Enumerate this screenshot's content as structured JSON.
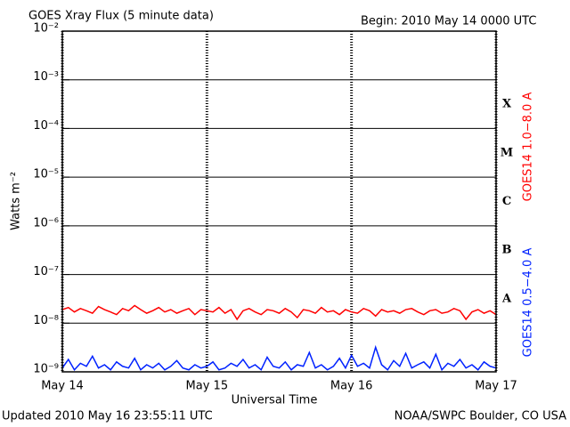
{
  "chart_data": {
    "type": "line",
    "title": "GOES Xray Flux (5 minute data)",
    "subtitle": "Begin:  2010 May 14 0000 UTC",
    "y_label": "Watts m⁻²",
    "x_label": "Universal Time",
    "footer_left": "Updated 2010 May 16 23:55:11 UTC",
    "footer_right": "NOAA/SWPC Boulder, CO USA",
    "annotations": [
      "X",
      "M",
      "C",
      "B",
      "A"
    ],
    "log_y": true,
    "grid": true,
    "xlim": [
      0,
      72
    ],
    "xticks": [
      {
        "value": 0,
        "label": "May 14"
      },
      {
        "value": 24,
        "label": "May 15"
      },
      {
        "value": 48,
        "label": "May 16"
      },
      {
        "value": 72,
        "label": "May 17"
      }
    ],
    "ylim": [
      1e-09,
      0.01
    ],
    "yticks": [
      {
        "value": 1e-09,
        "label": "10⁻⁹"
      },
      {
        "value": 1e-08,
        "label": "10⁻⁸"
      },
      {
        "value": 1e-07,
        "label": "10⁻⁷"
      },
      {
        "value": 1e-06,
        "label": "10⁻⁶"
      },
      {
        "value": 1e-05,
        "label": "10⁻⁵"
      },
      {
        "value": 0.0001,
        "label": "10⁻⁴"
      },
      {
        "value": 0.001,
        "label": "10⁻³"
      },
      {
        "value": 0.01,
        "label": "10⁻²"
      }
    ],
    "x": [
      0,
      1,
      2,
      3,
      4,
      5,
      6,
      7,
      8,
      9,
      10,
      11,
      12,
      13,
      14,
      15,
      16,
      17,
      18,
      19,
      20,
      21,
      22,
      23,
      24,
      25,
      26,
      27,
      28,
      29,
      30,
      31,
      32,
      33,
      34,
      35,
      36,
      37,
      38,
      39,
      40,
      41,
      42,
      43,
      44,
      45,
      46,
      47,
      48,
      49,
      50,
      51,
      52,
      53,
      54,
      55,
      56,
      57,
      58,
      59,
      60,
      61,
      62,
      63,
      64,
      65,
      66,
      67,
      68,
      69,
      70,
      71,
      72
    ],
    "series": [
      {
        "name": "GOES14 1.0−8.0 A",
        "color": "#ff0000",
        "values": [
          1.9e-08,
          2.1e-08,
          1.7e-08,
          2e-08,
          1.8e-08,
          1.6e-08,
          2.2e-08,
          1.9e-08,
          1.7e-08,
          1.5e-08,
          2e-08,
          1.8e-08,
          2.3e-08,
          1.9e-08,
          1.6e-08,
          1.8e-08,
          2.1e-08,
          1.7e-08,
          1.9e-08,
          1.6e-08,
          1.8e-08,
          2e-08,
          1.5e-08,
          1.9e-08,
          1.8e-08,
          1.7e-08,
          2.1e-08,
          1.6e-08,
          1.9e-08,
          1.2e-08,
          1.8e-08,
          2e-08,
          1.7e-08,
          1.5e-08,
          1.9e-08,
          1.8e-08,
          1.6e-08,
          2e-08,
          1.7e-08,
          1.3e-08,
          1.9e-08,
          1.8e-08,
          1.6e-08,
          2.1e-08,
          1.7e-08,
          1.8e-08,
          1.5e-08,
          1.9e-08,
          1.7e-08,
          1.6e-08,
          2e-08,
          1.8e-08,
          1.4e-08,
          1.9e-08,
          1.7e-08,
          1.8e-08,
          1.6e-08,
          1.9e-08,
          2e-08,
          1.7e-08,
          1.5e-08,
          1.8e-08,
          1.9e-08,
          1.6e-08,
          1.7e-08,
          2e-08,
          1.8e-08,
          1.2e-08,
          1.7e-08,
          1.9e-08,
          1.6e-08,
          1.8e-08,
          1.5e-08
        ]
      },
      {
        "name": "GOES14 0.5−4.0 A",
        "color": "#0022ff",
        "values": [
          1.2e-09,
          1.8e-09,
          1.1e-09,
          1.5e-09,
          1.3e-09,
          2.1e-09,
          1.2e-09,
          1.4e-09,
          1.1e-09,
          1.6e-09,
          1.3e-09,
          1.2e-09,
          1.9e-09,
          1.1e-09,
          1.4e-09,
          1.2e-09,
          1.5e-09,
          1.1e-09,
          1.3e-09,
          1.7e-09,
          1.2e-09,
          1.1e-09,
          1.4e-09,
          1.2e-09,
          1.3e-09,
          1.6e-09,
          1.1e-09,
          1.2e-09,
          1.5e-09,
          1.3e-09,
          1.8e-09,
          1.2e-09,
          1.4e-09,
          1.1e-09,
          2e-09,
          1.3e-09,
          1.2e-09,
          1.6e-09,
          1.1e-09,
          1.4e-09,
          1.3e-09,
          2.5e-09,
          1.2e-09,
          1.4e-09,
          1.1e-09,
          1.3e-09,
          1.9e-09,
          1.2e-09,
          2.2e-09,
          1.3e-09,
          1.5e-09,
          1.2e-09,
          3.2e-09,
          1.4e-09,
          1.1e-09,
          1.7e-09,
          1.3e-09,
          2.4e-09,
          1.2e-09,
          1.4e-09,
          1.6e-09,
          1.2e-09,
          2.3e-09,
          1.1e-09,
          1.5e-09,
          1.3e-09,
          1.8e-09,
          1.2e-09,
          1.4e-09,
          1.1e-09,
          1.6e-09,
          1.3e-09,
          1.2e-09
        ]
      }
    ]
  }
}
